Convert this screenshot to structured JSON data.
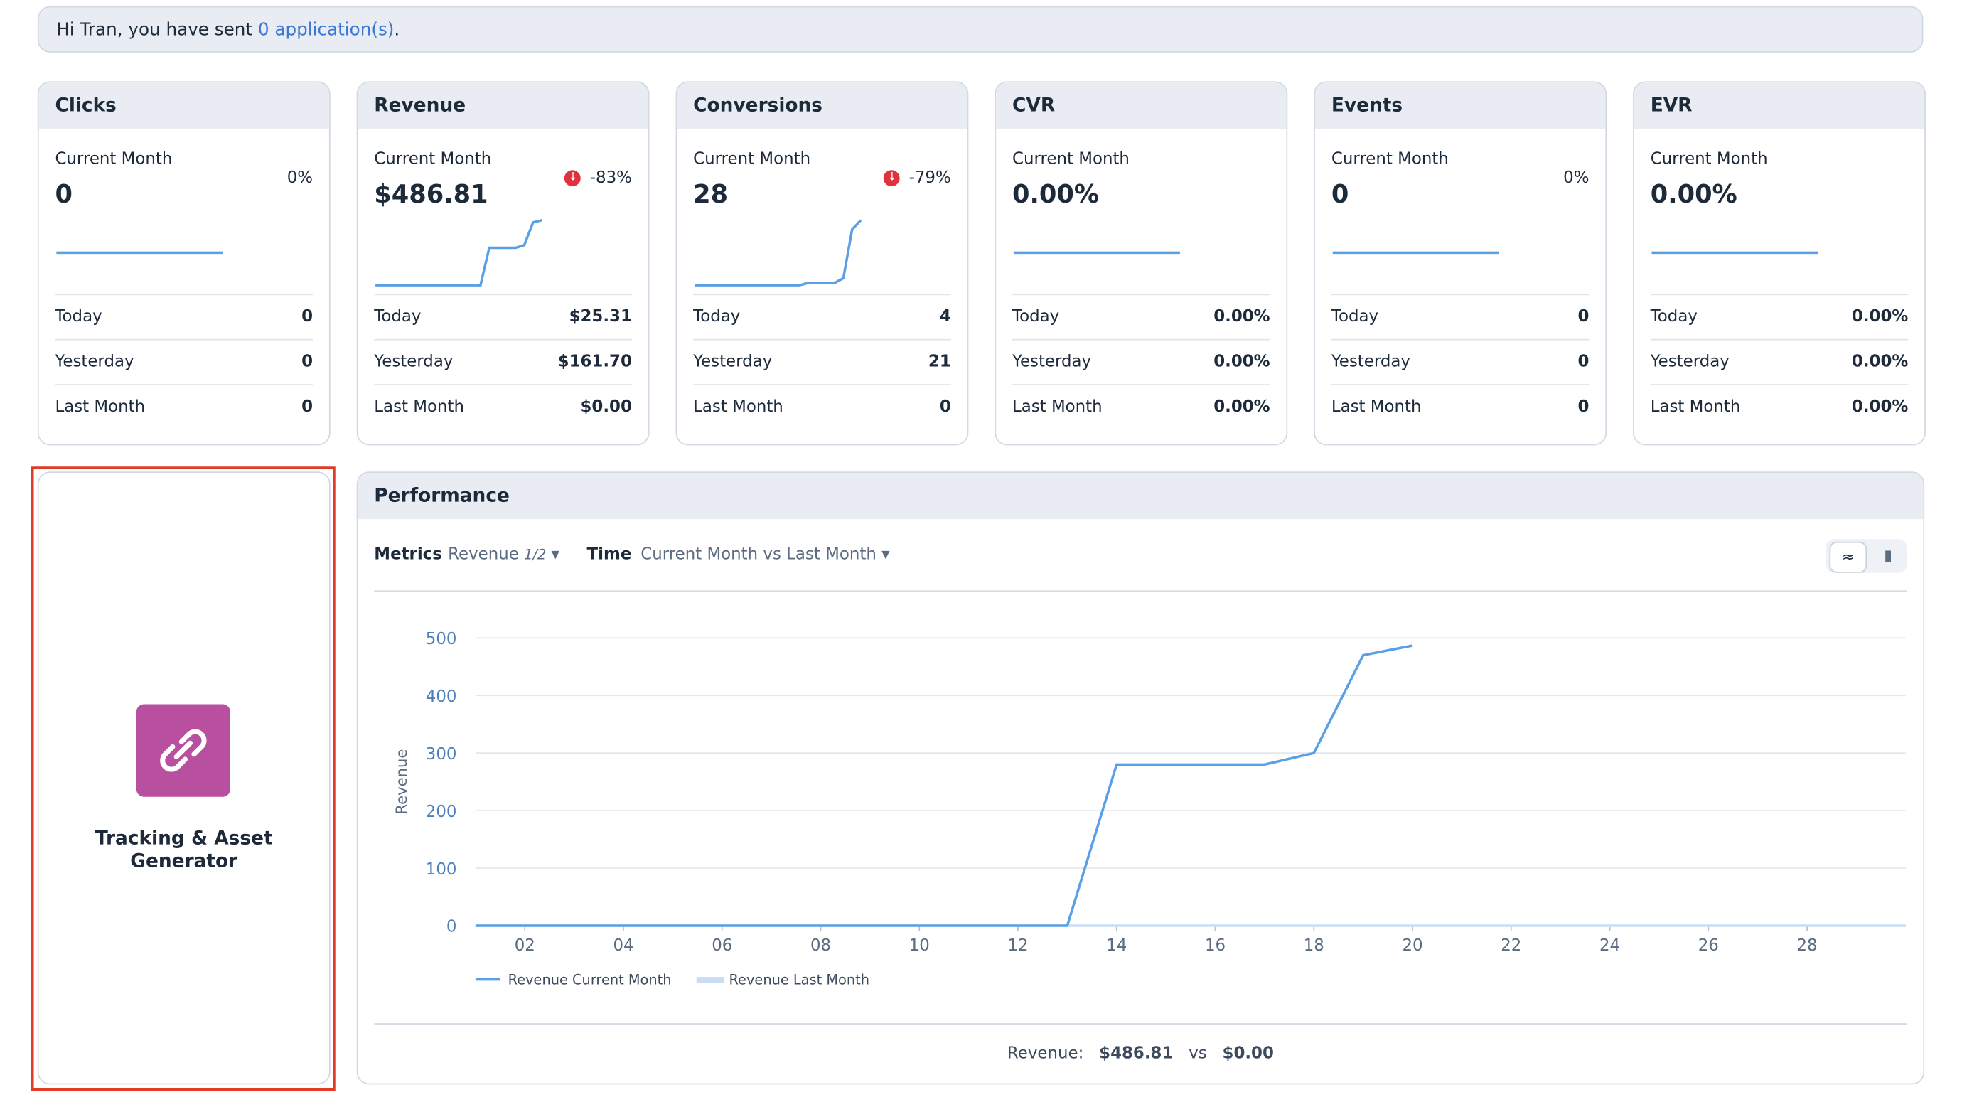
{
  "greeting": {
    "text": "Hi Tran, you have sent ",
    "link": "0 application(s)",
    "end": "."
  },
  "cards": [
    {
      "title": "Clicks",
      "period": "Current Month",
      "value": "0",
      "change": "0%",
      "change_down": false,
      "sparkline": [
        0,
        0,
        0,
        0,
        0,
        0,
        0,
        0,
        0,
        0,
        0,
        0,
        0,
        0,
        0,
        0,
        0,
        0,
        0,
        0
      ],
      "rows": [
        [
          "Today",
          "0"
        ],
        [
          "Yesterday",
          "0"
        ],
        [
          "Last Month",
          "0"
        ]
      ]
    },
    {
      "title": "Revenue",
      "period": "Current Month",
      "value": "$486.81",
      "change": "-83%",
      "change_down": true,
      "sparkline": [
        0,
        0,
        0,
        0,
        0,
        0,
        0,
        0,
        0,
        0,
        0,
        0,
        0,
        280,
        280,
        280,
        280,
        300,
        470,
        486.81
      ],
      "rows": [
        [
          "Today",
          "$25.31"
        ],
        [
          "Yesterday",
          "$161.70"
        ],
        [
          "Last Month",
          "$0.00"
        ]
      ]
    },
    {
      "title": "Conversions",
      "period": "Current Month",
      "value": "28",
      "change": "-79%",
      "change_down": true,
      "sparkline": [
        0,
        0,
        0,
        0,
        0,
        0,
        0,
        0,
        0,
        0,
        0,
        0,
        0,
        1,
        1,
        1,
        1,
        3,
        24,
        28
      ],
      "rows": [
        [
          "Today",
          "4"
        ],
        [
          "Yesterday",
          "21"
        ],
        [
          "Last Month",
          "0"
        ]
      ]
    },
    {
      "title": "CVR",
      "period": "Current Month",
      "value": "0.00%",
      "change": null,
      "change_down": false,
      "sparkline": [
        0,
        0,
        0,
        0,
        0,
        0,
        0,
        0,
        0,
        0,
        0,
        0,
        0,
        0,
        0,
        0,
        0,
        0,
        0,
        0
      ],
      "rows": [
        [
          "Today",
          "0.00%"
        ],
        [
          "Yesterday",
          "0.00%"
        ],
        [
          "Last Month",
          "0.00%"
        ]
      ]
    },
    {
      "title": "Events",
      "period": "Current Month",
      "value": "0",
      "change": "0%",
      "change_down": false,
      "sparkline": [
        0,
        0,
        0,
        0,
        0,
        0,
        0,
        0,
        0,
        0,
        0,
        0,
        0,
        0,
        0,
        0,
        0,
        0,
        0,
        0
      ],
      "rows": [
        [
          "Today",
          "0"
        ],
        [
          "Yesterday",
          "0"
        ],
        [
          "Last Month",
          "0"
        ]
      ]
    },
    {
      "title": "EVR",
      "period": "Current Month",
      "value": "0.00%",
      "change": null,
      "change_down": false,
      "sparkline": [
        0,
        0,
        0,
        0,
        0,
        0,
        0,
        0,
        0,
        0,
        0,
        0,
        0,
        0,
        0,
        0,
        0,
        0,
        0,
        0
      ],
      "rows": [
        [
          "Today",
          "0.00%"
        ],
        [
          "Yesterday",
          "0.00%"
        ],
        [
          "Last Month",
          "0.00%"
        ]
      ]
    }
  ],
  "tile": {
    "label": "Tracking & Asset Generator"
  },
  "performance": {
    "title": "Performance",
    "metrics_label": "Metrics",
    "metric": "Revenue",
    "metric_page": "1/2",
    "time_label": "Time",
    "time": "Current Month vs Last Month",
    "footer": {
      "label": "Revenue:",
      "current": "$486.81",
      "vs": "vs",
      "previous": "$0.00"
    },
    "chart_data": {
      "type": "line",
      "y_label": "Revenue",
      "x": [
        1,
        2,
        3,
        4,
        5,
        6,
        7,
        8,
        9,
        10,
        11,
        12,
        13,
        14,
        15,
        16,
        17,
        18,
        19,
        20,
        21,
        22,
        23,
        24,
        25,
        26,
        27,
        28,
        29,
        30
      ],
      "xlim": [
        1,
        30
      ],
      "xticks": [
        {
          "value": 2,
          "label": "02"
        },
        {
          "value": 4,
          "label": "04"
        },
        {
          "value": 6,
          "label": "06"
        },
        {
          "value": 8,
          "label": "08"
        },
        {
          "value": 10,
          "label": "10"
        },
        {
          "value": 12,
          "label": "12"
        },
        {
          "value": 14,
          "label": "14"
        },
        {
          "value": 16,
          "label": "16"
        },
        {
          "value": 18,
          "label": "18"
        },
        {
          "value": 20,
          "label": "20"
        },
        {
          "value": 22,
          "label": "22"
        },
        {
          "value": 24,
          "label": "24"
        },
        {
          "value": 26,
          "label": "26"
        },
        {
          "value": 28,
          "label": "28"
        }
      ],
      "ylim": [
        0,
        500
      ],
      "yticks": [
        0,
        100,
        200,
        300,
        400,
        500
      ],
      "grid": true,
      "series": [
        {
          "name": "Revenue Last Month",
          "color": "#c9def5",
          "values": [
            0,
            0,
            0,
            0,
            0,
            0,
            0,
            0,
            0,
            0,
            0,
            0,
            0,
            0,
            0,
            0,
            0,
            0,
            0,
            0,
            0,
            0,
            0,
            0,
            0,
            0,
            0,
            0,
            0,
            0
          ]
        },
        {
          "name": "Revenue Current Month",
          "color": "#5aa0e6",
          "values": [
            0,
            0,
            0,
            0,
            0,
            0,
            0,
            0,
            0,
            0,
            0,
            0,
            0,
            280,
            280,
            280,
            280,
            300,
            470,
            486.81,
            null,
            null,
            null,
            null,
            null,
            null,
            null,
            null,
            null,
            null
          ]
        }
      ]
    }
  }
}
